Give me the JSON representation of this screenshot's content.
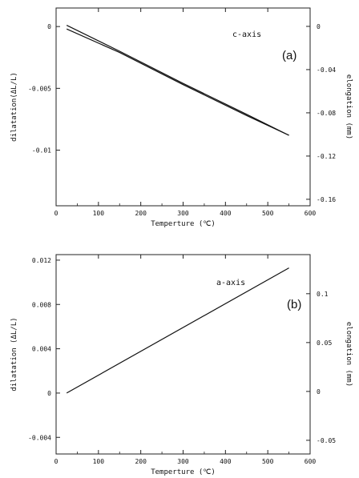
{
  "chart_data": [
    {
      "type": "line",
      "panel_label": "(a)",
      "annotation": "c-axis",
      "xlabel": "Temperture (℃)",
      "ylabel": "dilatation(ΔL/L)",
      "y2label": "elongation (mm)",
      "xlim": [
        0,
        600
      ],
      "ylim": [
        -0.0145,
        0.0015
      ],
      "y2lim": [
        -0.166,
        0.017
      ],
      "xticks": [
        0,
        100,
        200,
        300,
        400,
        500,
        600
      ],
      "yticks": [
        0,
        -0.005,
        -0.01
      ],
      "ytick_labels": [
        "0",
        "-0.005",
        "-0.01"
      ],
      "y2ticks": [
        0,
        -0.04,
        -0.08,
        -0.12,
        -0.16
      ],
      "y2tick_labels": [
        "0",
        "-0.04",
        "-0.08",
        "-0.12",
        "-0.16"
      ],
      "grid": false,
      "series": [
        {
          "x": [
            25,
            150,
            300,
            450,
            550
          ],
          "values": [
            0.0001,
            -0.002,
            -0.0046,
            -0.0071,
            -0.0088
          ]
        },
        {
          "x": [
            25,
            150,
            300,
            450,
            550
          ],
          "values": [
            -0.0002,
            -0.0021,
            -0.0047,
            -0.0072,
            -0.0088
          ]
        }
      ]
    },
    {
      "type": "line",
      "panel_label": "(b)",
      "annotation": "a-axis",
      "xlabel": "Temperture (℃)",
      "ylabel": "dilatation (ΔL/L)",
      "y2label": "elongation (mm)",
      "xlim": [
        0,
        600
      ],
      "ylim": [
        -0.0055,
        0.0125
      ],
      "y2lim": [
        -0.064,
        0.14
      ],
      "xticks": [
        0,
        100,
        200,
        300,
        400,
        500,
        600
      ],
      "yticks": [
        0.012,
        0.008,
        0.004,
        0,
        -0.004
      ],
      "ytick_labels": [
        "0.012",
        "0.008",
        "0.004",
        "0",
        "-0.004"
      ],
      "y2ticks": [
        0.1,
        0.05,
        0,
        -0.05
      ],
      "y2tick_labels": [
        "0.1",
        "0.05",
        "0",
        "-0.05"
      ],
      "grid": false,
      "series": [
        {
          "x": [
            25,
            550
          ],
          "values": [
            0.0,
            0.0113
          ]
        }
      ]
    }
  ]
}
